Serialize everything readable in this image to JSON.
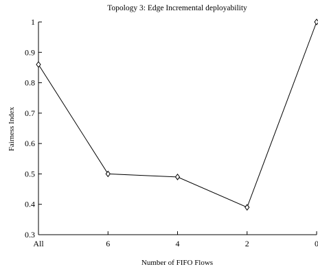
{
  "chart_data": {
    "type": "line",
    "title": "Topology 3: Edge Incremental deployability",
    "xlabel": "Number of FIFO Flows",
    "ylabel": "Fairness Index",
    "categories": [
      "All",
      "6",
      "4",
      "2",
      "0"
    ],
    "series": [
      {
        "values": [
          0.86,
          0.5,
          0.49,
          0.39,
          1.0
        ]
      }
    ],
    "ylim": [
      0.3,
      1.0
    ],
    "yticks": [
      "0.3",
      "0.4",
      "0.5",
      "0.6",
      "0.7",
      "0.8",
      "0.9",
      "1"
    ],
    "marker": "diamond",
    "line_color": "#000000",
    "grid": false,
    "legend": "none"
  }
}
